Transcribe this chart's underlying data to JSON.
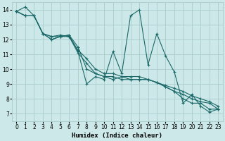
{
  "xlabel": "Humidex (Indice chaleur)",
  "ylabel": "",
  "bg_color": "#cce8e8",
  "grid_color": "#aacccc",
  "line_color": "#1a6868",
  "xlim": [
    -0.5,
    23.5
  ],
  "ylim": [
    6.5,
    14.5
  ],
  "xticks": [
    0,
    1,
    2,
    3,
    4,
    5,
    6,
    7,
    8,
    9,
    10,
    11,
    12,
    13,
    14,
    15,
    16,
    17,
    18,
    19,
    20,
    21,
    22,
    23
  ],
  "yticks": [
    7,
    8,
    9,
    10,
    11,
    12,
    13,
    14
  ],
  "series": [
    [
      13.9,
      14.2,
      13.6,
      12.4,
      12.0,
      12.2,
      12.3,
      11.2,
      9.0,
      9.5,
      9.3,
      11.2,
      9.7,
      13.6,
      14.0,
      10.3,
      12.4,
      10.9,
      9.8,
      7.7,
      8.3,
      7.5,
      7.1,
      7.3
    ],
    [
      13.9,
      13.6,
      13.6,
      12.4,
      12.2,
      12.2,
      12.2,
      11.1,
      10.4,
      9.7,
      9.5,
      9.5,
      9.3,
      9.3,
      9.3,
      9.3,
      9.1,
      8.8,
      8.5,
      8.3,
      8.0,
      7.8,
      7.7,
      7.3
    ],
    [
      13.9,
      13.6,
      13.6,
      12.4,
      12.2,
      12.3,
      12.2,
      11.3,
      10.7,
      10.0,
      9.7,
      9.7,
      9.5,
      9.5,
      9.5,
      9.3,
      9.1,
      8.9,
      8.7,
      8.5,
      8.2,
      8.0,
      7.8,
      7.5
    ],
    [
      13.9,
      13.6,
      13.6,
      12.4,
      12.0,
      12.2,
      12.3,
      11.5,
      10.0,
      9.7,
      9.5,
      9.3,
      9.5,
      9.3,
      9.3,
      9.3,
      9.1,
      8.8,
      8.5,
      8.0,
      7.7,
      7.7,
      7.3,
      7.3
    ]
  ],
  "marker": "+",
  "markersize": 3.5,
  "linewidth": 0.8,
  "xlabel_fontsize": 6.5,
  "tick_fontsize": 5.5
}
